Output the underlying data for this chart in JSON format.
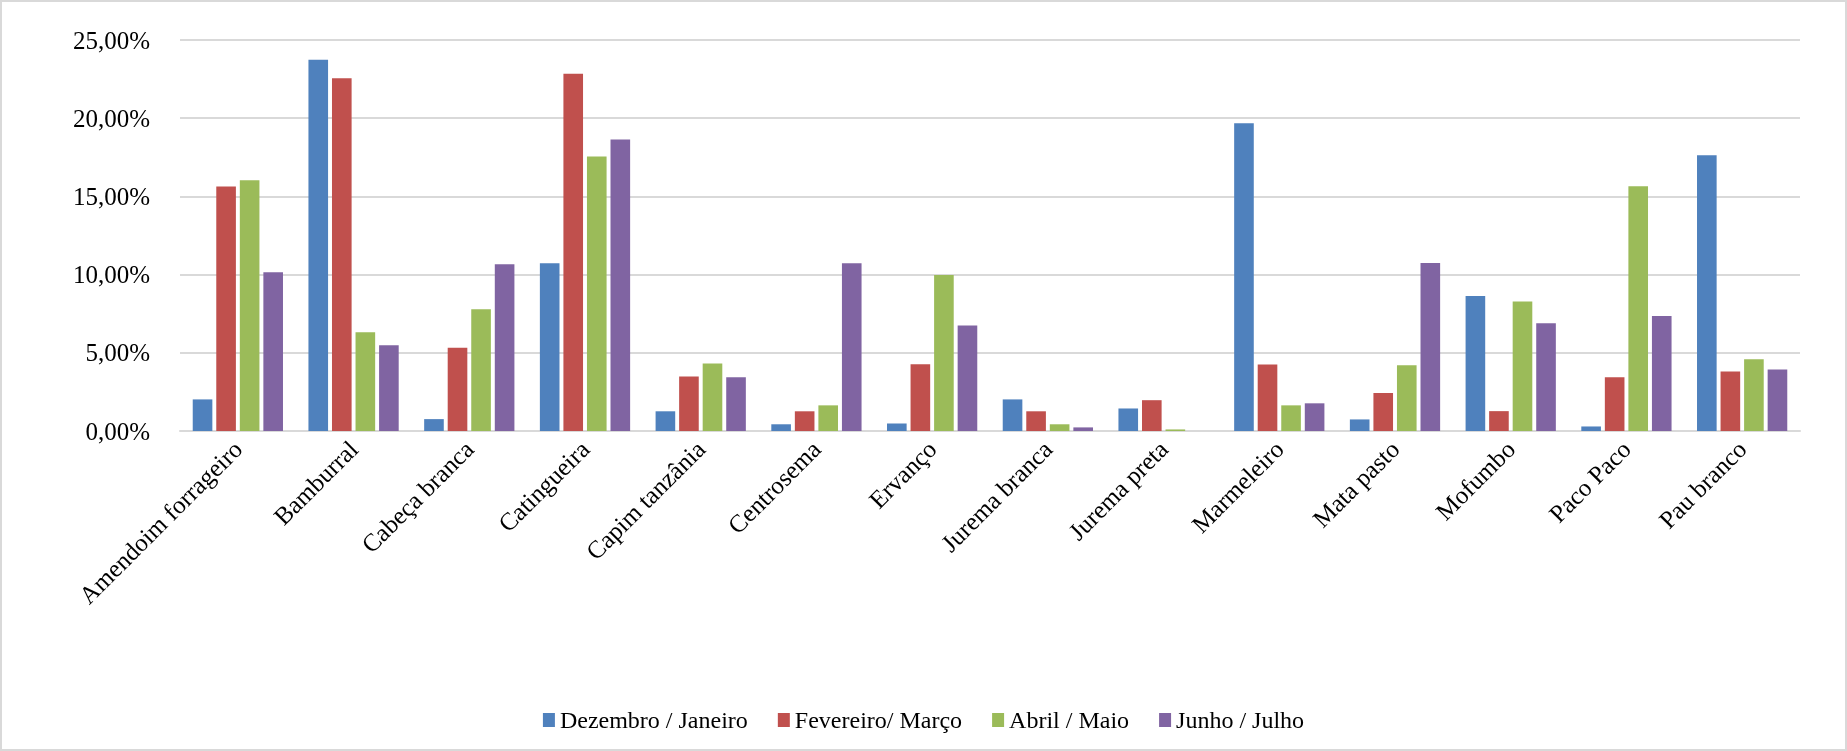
{
  "chart_data": {
    "type": "bar",
    "categories": [
      "Amendoim forrageiro",
      "Bamburral",
      "Cabeça branca",
      "Catingueira",
      "Capim tanzânia",
      "Centrosema",
      "Ervanço",
      "Jurema branca",
      "Jurema preta",
      "Marmeleiro",
      "Mata pasto",
      "Mofumbo",
      "Paco Paco",
      "Pau branco"
    ],
    "series": [
      {
        "name": "Dezembro / Janeiro",
        "color": "#4f81bd",
        "values": [
          2.02,
          23.74,
          0.76,
          10.73,
          1.26,
          0.43,
          0.48,
          2.02,
          1.44,
          19.68,
          0.74,
          8.63,
          0.29,
          17.63
        ]
      },
      {
        "name": "Fevereiro/ Março",
        "color": "#c0504d",
        "values": [
          15.63,
          22.55,
          5.33,
          22.85,
          3.48,
          1.26,
          4.27,
          1.26,
          1.97,
          4.25,
          2.43,
          1.27,
          3.43,
          3.8
        ]
      },
      {
        "name": "Abril / Maio",
        "color": "#9bbb59",
        "values": [
          16.03,
          6.31,
          7.78,
          17.55,
          4.32,
          1.64,
          9.97,
          0.43,
          0.1,
          1.64,
          4.2,
          8.28,
          15.65,
          4.59
        ]
      },
      {
        "name": "Junho / Julho",
        "color": "#8064a2",
        "values": [
          10.15,
          5.48,
          10.66,
          18.64,
          3.43,
          10.73,
          6.74,
          0.23,
          0,
          1.77,
          10.74,
          6.89,
          7.36,
          3.93
        ]
      }
    ],
    "ylim": [
      0,
      25
    ],
    "yticks": [
      {
        "value": 0,
        "label": "0,00%"
      },
      {
        "value": 5,
        "label": "5,00%"
      },
      {
        "value": 10,
        "label": "10,00%"
      },
      {
        "value": 15,
        "label": "15,00%"
      },
      {
        "value": 20,
        "label": "20,00%"
      },
      {
        "value": 25,
        "label": "25,00%"
      }
    ],
    "grid": "y",
    "legend": "bottom"
  }
}
